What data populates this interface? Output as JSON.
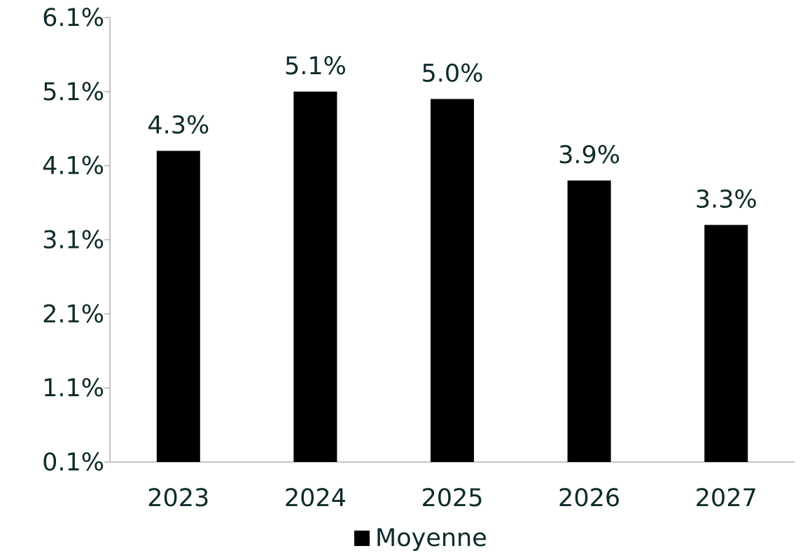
{
  "chart_data": {
    "type": "bar",
    "categories": [
      "2023",
      "2024",
      "2025",
      "2026",
      "2027"
    ],
    "series": [
      {
        "name": "Moyenne",
        "color": "#000000",
        "values": [
          4.3,
          5.1,
          5.0,
          3.9,
          3.3
        ],
        "value_labels": [
          "4.3%",
          "5.1%",
          "5.0%",
          "3.9%",
          "3.3%"
        ]
      }
    ],
    "ylim": [
      0.1,
      6.1
    ],
    "yticks": [
      {
        "value": 0.1,
        "label": "0.1%"
      },
      {
        "value": 1.1,
        "label": "1.1%"
      },
      {
        "value": 2.1,
        "label": "2.1%"
      },
      {
        "value": 3.1,
        "label": "3.1%"
      },
      {
        "value": 4.1,
        "label": "4.1%"
      },
      {
        "value": 5.1,
        "label": "5.1%"
      },
      {
        "value": 6.1,
        "label": "6.1%"
      }
    ],
    "grid": false,
    "legend": "bottom"
  }
}
